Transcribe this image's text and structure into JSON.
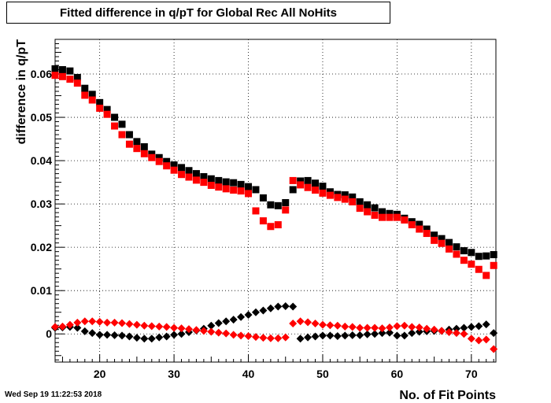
{
  "chart_data": {
    "type": "scatter",
    "title": "Fitted difference in q/pT for Global Rec All NoHits",
    "xlabel": "No. of Fit Points",
    "ylabel": "difference in q/pT",
    "xlim": [
      14,
      73.3
    ],
    "ylim": [
      -0.0065,
      0.068
    ],
    "x_ticks": [
      20,
      30,
      40,
      50,
      60,
      70
    ],
    "y_ticks": [
      0,
      0.01,
      0.02,
      0.03,
      0.04,
      0.05,
      0.06
    ],
    "y_tick_labels": [
      "0",
      "0.01",
      "0.02",
      "0.03",
      "0.04",
      "0.05",
      "0.06"
    ],
    "grid": true,
    "x": [
      14,
      15,
      16,
      17,
      18,
      19,
      20,
      21,
      22,
      23,
      24,
      25,
      26,
      27,
      28,
      29,
      30,
      31,
      32,
      33,
      34,
      35,
      36,
      37,
      38,
      39,
      40,
      41,
      42,
      43,
      44,
      45,
      46,
      47,
      48,
      49,
      50,
      51,
      52,
      53,
      54,
      55,
      56,
      57,
      58,
      59,
      60,
      61,
      62,
      63,
      64,
      65,
      66,
      67,
      68,
      69,
      70,
      71,
      72,
      73
    ],
    "series": [
      {
        "marker": "square",
        "color": "#000000",
        "values": [
          0.0612,
          0.061,
          0.0607,
          0.0592,
          0.0567,
          0.0553,
          0.0534,
          0.0518,
          0.05,
          0.0484,
          0.046,
          0.0444,
          0.0432,
          0.0415,
          0.0407,
          0.0398,
          0.039,
          0.0384,
          0.0377,
          0.037,
          0.0363,
          0.0358,
          0.0354,
          0.0351,
          0.0349,
          0.0345,
          0.034,
          0.0333,
          0.0314,
          0.0298,
          0.0296,
          0.0303,
          0.0333,
          0.0353,
          0.0354,
          0.0348,
          0.0341,
          0.0328,
          0.0322,
          0.0321,
          0.0316,
          0.0305,
          0.0298,
          0.0291,
          0.0282,
          0.0278,
          0.0276,
          0.0267,
          0.0259,
          0.0253,
          0.0242,
          0.0228,
          0.022,
          0.0211,
          0.0201,
          0.0192,
          0.0188,
          0.0179,
          0.018,
          0.0183
        ]
      },
      {
        "marker": "square",
        "color": "#ff0000",
        "values": [
          0.0597,
          0.0594,
          0.0588,
          0.0579,
          0.0551,
          0.054,
          0.0521,
          0.0507,
          0.048,
          0.046,
          0.0438,
          0.0428,
          0.0416,
          0.0407,
          0.0398,
          0.0388,
          0.0378,
          0.0368,
          0.0362,
          0.0355,
          0.035,
          0.0343,
          0.0339,
          0.0335,
          0.0332,
          0.033,
          0.0324,
          0.0284,
          0.0261,
          0.0248,
          0.0252,
          0.0286,
          0.0354,
          0.0344,
          0.0338,
          0.0332,
          0.0325,
          0.032,
          0.0315,
          0.0311,
          0.0305,
          0.029,
          0.0282,
          0.0274,
          0.0269,
          0.0269,
          0.0269,
          0.0263,
          0.0252,
          0.0242,
          0.0232,
          0.0216,
          0.0209,
          0.0196,
          0.0184,
          0.017,
          0.0161,
          0.0149,
          0.0135,
          0.0158
        ]
      },
      {
        "marker": "diamond",
        "color": "#000000",
        "values": [
          0.0014,
          0.0015,
          0.0016,
          0.0014,
          0.0006,
          0.0002,
          -0.0002,
          -0.0002,
          -0.0003,
          -0.0004,
          -0.0006,
          -0.0009,
          -0.0011,
          -0.0011,
          -0.0008,
          -0.0006,
          -0.0002,
          0.0,
          0.0004,
          0.0008,
          0.0012,
          0.0019,
          0.0025,
          0.0029,
          0.0033,
          0.0039,
          0.0044,
          0.005,
          0.0054,
          0.0059,
          0.0063,
          0.0064,
          0.0063,
          -0.0011,
          -0.0008,
          -0.0006,
          -0.0004,
          -0.0004,
          -0.0005,
          -0.0004,
          -0.0003,
          -0.0003,
          -0.0001,
          0.0,
          0.0002,
          0.0003,
          -0.0004,
          -0.0004,
          0.0002,
          0.0005,
          0.0006,
          0.0007,
          0.0007,
          0.001,
          0.0012,
          0.0014,
          0.0016,
          0.0018,
          0.0022,
          0.0002
        ]
      },
      {
        "marker": "diamond",
        "color": "#ff0000",
        "values": [
          0.0016,
          0.0017,
          0.0021,
          0.0026,
          0.0029,
          0.0029,
          0.0028,
          0.0026,
          0.0026,
          0.0025,
          0.0023,
          0.0021,
          0.0019,
          0.0018,
          0.0017,
          0.0016,
          0.0014,
          0.0013,
          0.0011,
          0.0009,
          0.0007,
          0.0005,
          0.0003,
          0.0001,
          -0.0002,
          -0.0004,
          -0.0005,
          -0.0007,
          -0.0009,
          -0.001,
          -0.001,
          -0.0008,
          0.0024,
          0.0029,
          0.0027,
          0.0024,
          0.0021,
          0.002,
          0.0019,
          0.0017,
          0.0016,
          0.0014,
          0.0014,
          0.0014,
          0.0013,
          0.0015,
          0.0018,
          0.0019,
          0.0016,
          0.0015,
          0.0012,
          0.001,
          0.0007,
          0.0004,
          0.0002,
          0.0,
          -0.0011,
          -0.0015,
          -0.0013,
          -0.0035
        ]
      }
    ],
    "stamp": "Wed Sep 19 11:22:53 2018"
  }
}
